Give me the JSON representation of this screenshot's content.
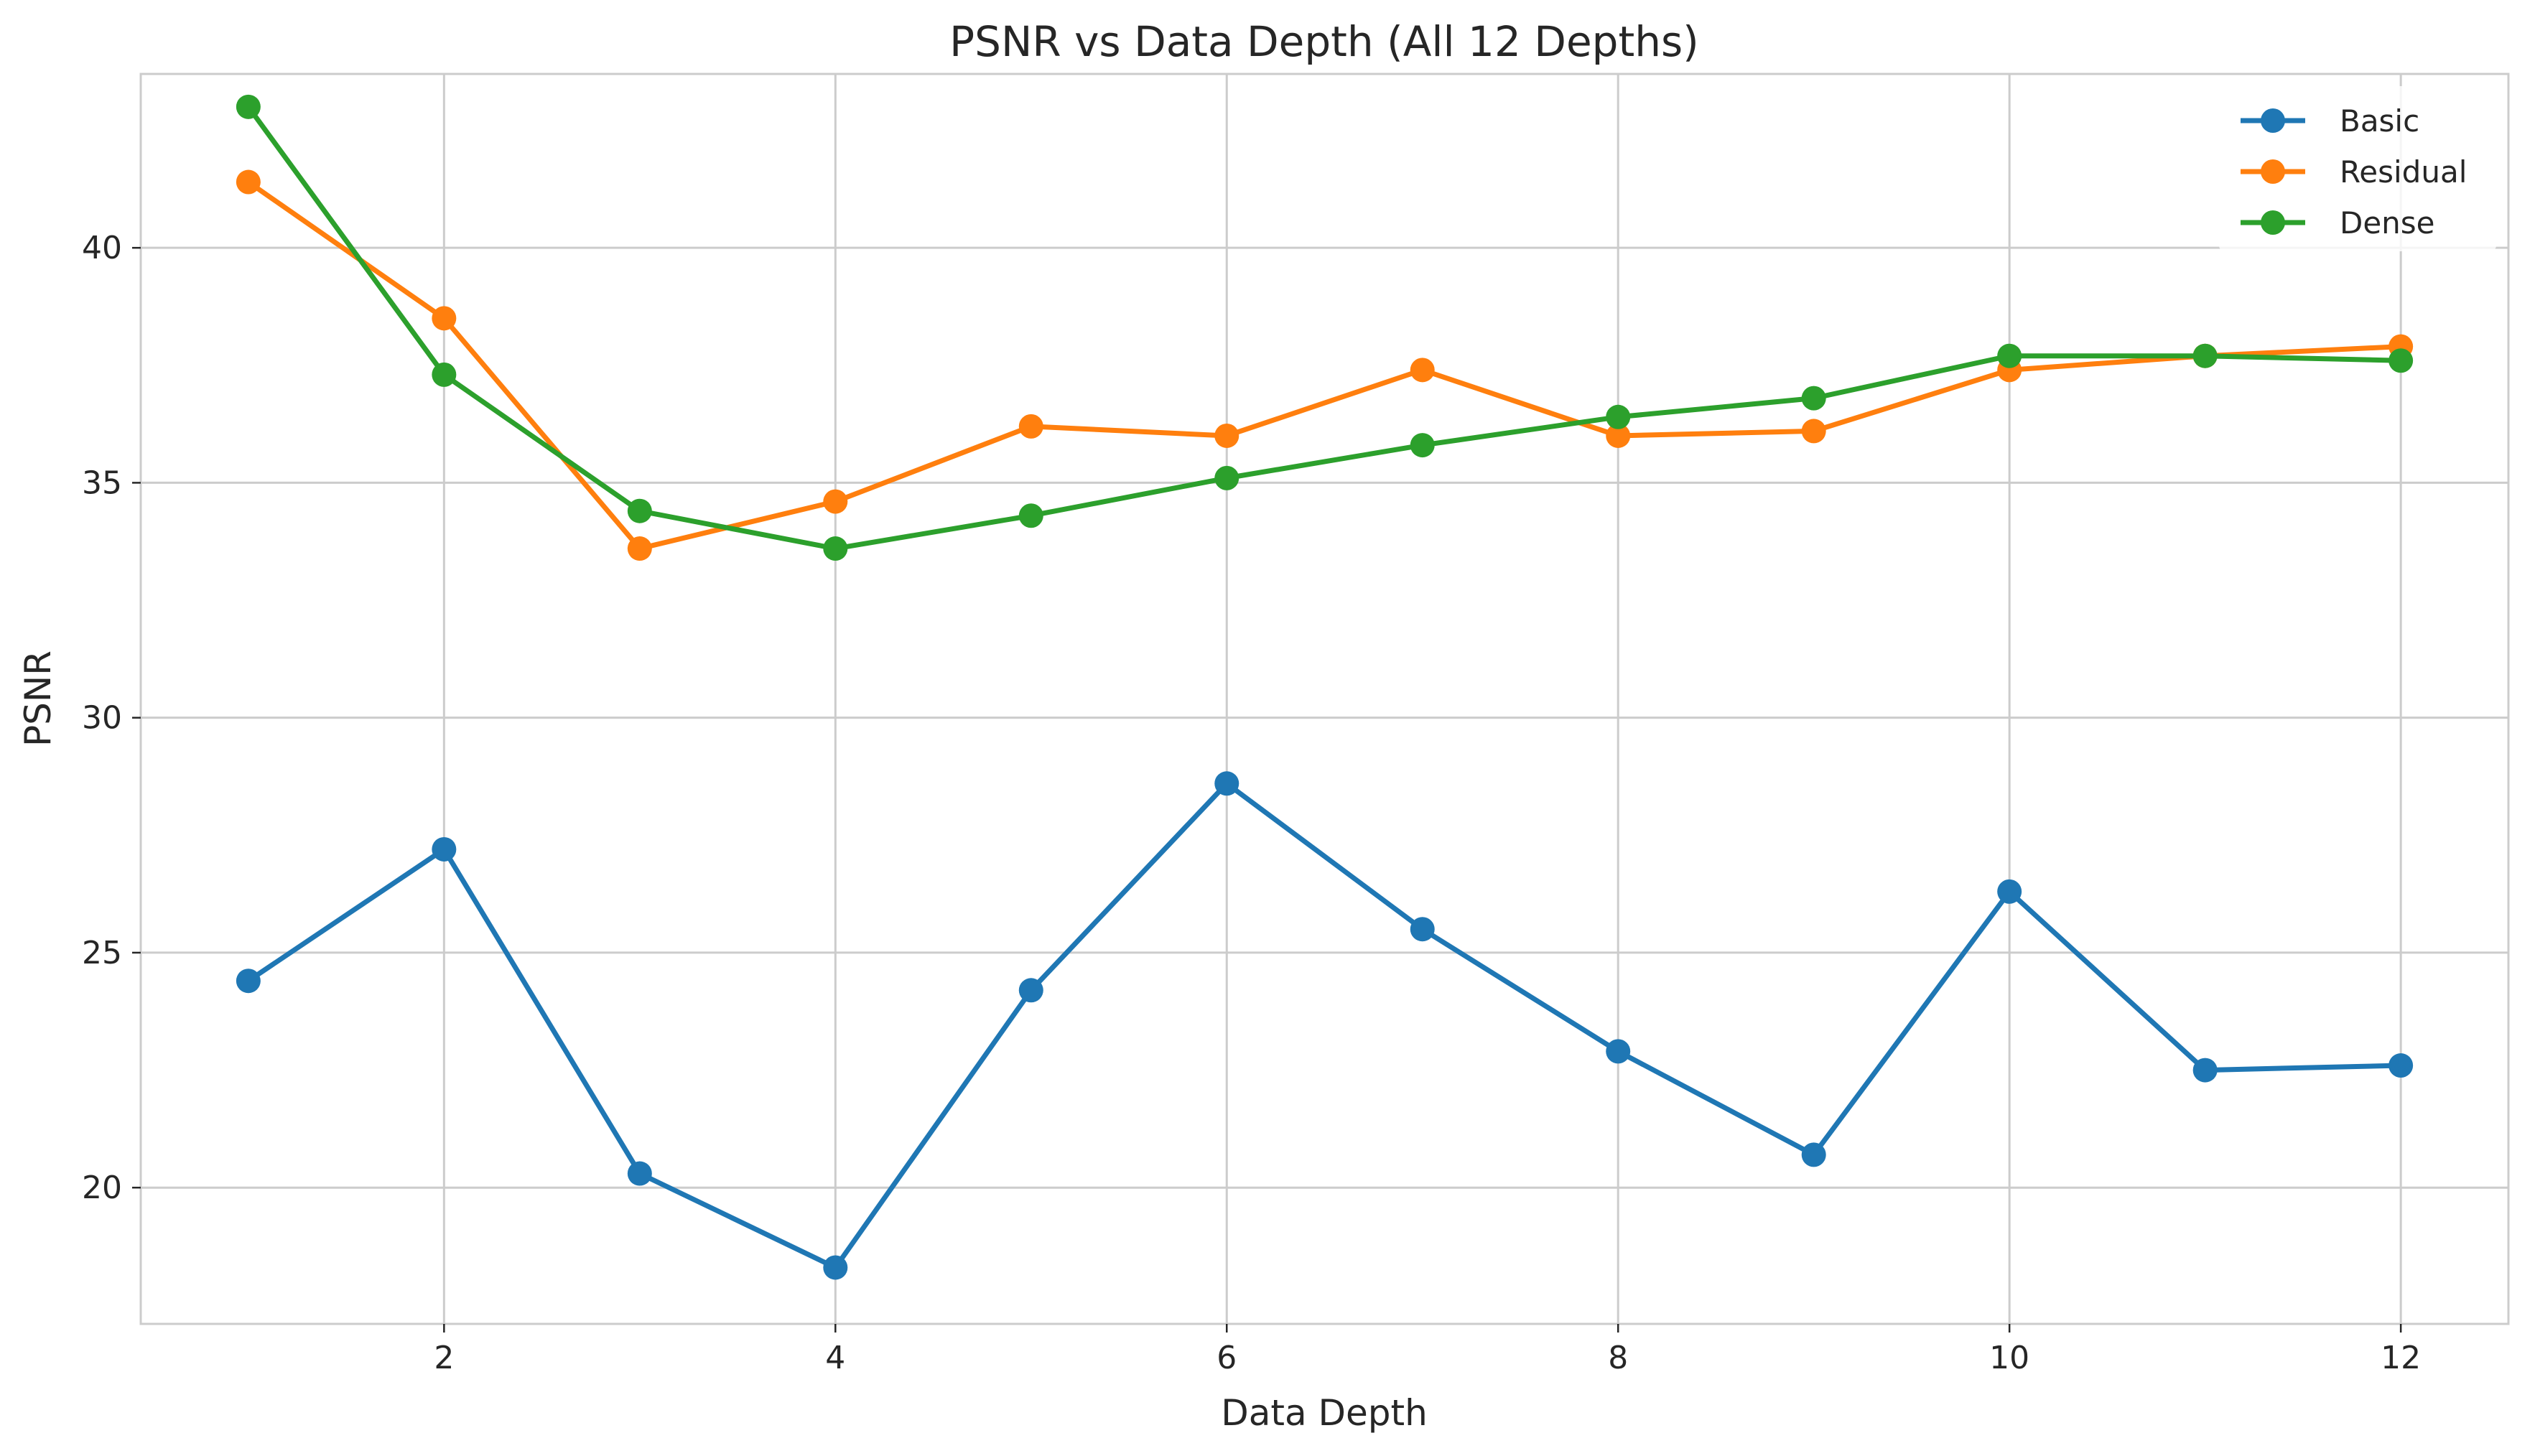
{
  "chart_data": {
    "type": "line",
    "title": "PSNR vs Data Depth (All 12 Depths)",
    "xlabel": "Data Depth",
    "ylabel": "PSNR",
    "x": [
      1,
      2,
      3,
      4,
      5,
      6,
      7,
      8,
      9,
      10,
      11,
      12
    ],
    "xlim": [
      0.45,
      12.55
    ],
    "ylim": [
      17.1,
      43.7
    ],
    "xticks": [
      2,
      4,
      6,
      8,
      10,
      12
    ],
    "yticks": [
      20,
      25,
      30,
      35,
      40
    ],
    "grid": true,
    "legend_position": "top-right",
    "series": [
      {
        "name": "Basic",
        "color": "#1f77b4",
        "values": [
          24.4,
          27.2,
          20.3,
          18.3,
          24.2,
          28.6,
          25.5,
          22.9,
          20.7,
          26.3,
          22.5,
          22.6
        ]
      },
      {
        "name": "Residual",
        "color": "#ff7f0e",
        "values": [
          41.4,
          38.5,
          33.6,
          34.6,
          36.2,
          36.0,
          37.4,
          36.0,
          36.1,
          37.4,
          37.7,
          37.9
        ]
      },
      {
        "name": "Dense",
        "color": "#2ca02c",
        "values": [
          43.0,
          37.3,
          34.4,
          33.6,
          34.3,
          35.1,
          35.8,
          36.4,
          36.8,
          37.7,
          37.7,
          37.6
        ]
      }
    ]
  }
}
